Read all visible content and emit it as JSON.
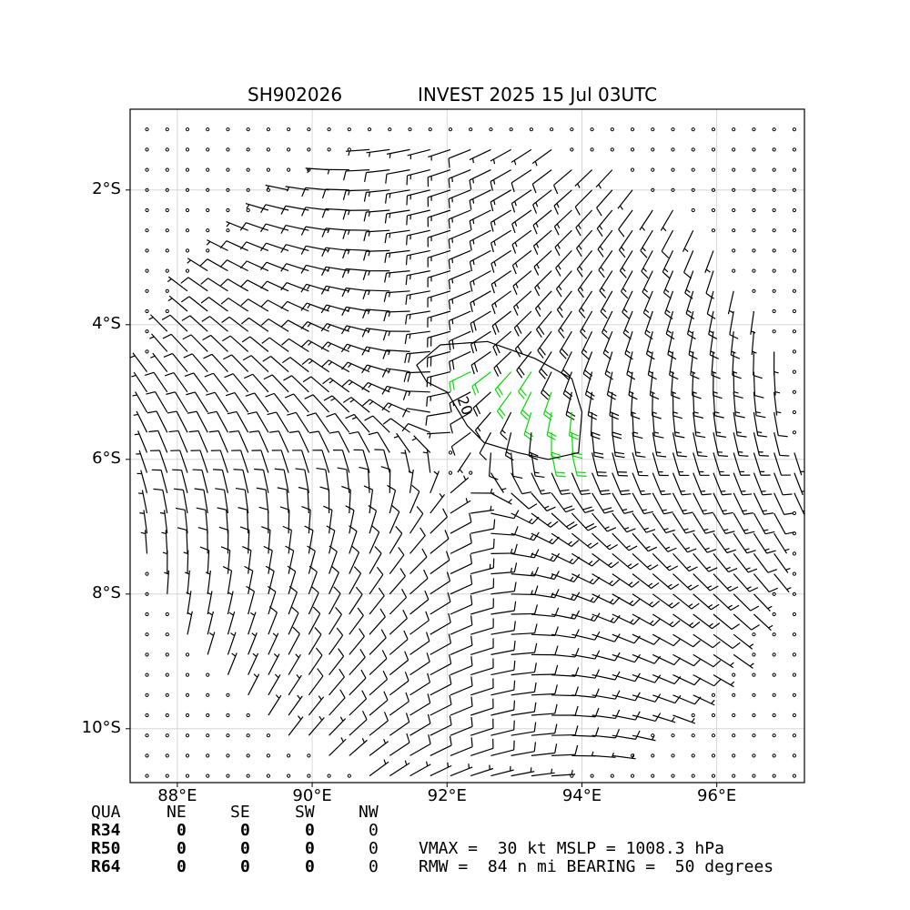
{
  "title": {
    "left": "SH902026",
    "right": "INVEST 2025 15 Jul 03UTC"
  },
  "chart_data": {
    "type": "wind-barb map",
    "lon_range": [
      87.3,
      97.3
    ],
    "lat_range": [
      -10.8,
      -0.8
    ],
    "x_ticks": [
      {
        "value": 88,
        "label": "88°E"
      },
      {
        "value": 90,
        "label": "90°E"
      },
      {
        "value": 92,
        "label": "92°E"
      },
      {
        "value": 94,
        "label": "94°E"
      },
      {
        "value": 96,
        "label": "96°E"
      }
    ],
    "y_ticks": [
      {
        "value": -2,
        "label": "2°S"
      },
      {
        "value": -4,
        "label": "4°S"
      },
      {
        "value": -6,
        "label": "6°S"
      },
      {
        "value": -8,
        "label": "8°S"
      },
      {
        "value": -10,
        "label": "10°S"
      }
    ],
    "grid": true,
    "center": {
      "lon": 92.2,
      "lat": -6.1
    },
    "vmax_kt": 30,
    "rmw_nmi": 84,
    "max_wind_bearing_deg": 50,
    "contour": {
      "value": 20,
      "label": "20",
      "color": "#000000"
    },
    "barb_color_low": "#000000",
    "barb_color_high": "#00dd00",
    "high_wind_threshold_kt": 20
  },
  "table": {
    "header": [
      "QUA",
      "NE",
      "SE",
      "SW",
      "NW"
    ],
    "rows": [
      {
        "label": "R34",
        "values": [
          "0",
          "0",
          "0",
          "0"
        ]
      },
      {
        "label": "R50",
        "values": [
          "0",
          "0",
          "0",
          "0"
        ]
      },
      {
        "label": "R64",
        "values": [
          "0",
          "0",
          "0",
          "0"
        ]
      }
    ]
  },
  "info": {
    "line1": "VMAX =  30 kt MSLP = 1008.3 hPa",
    "line2": "RMW =  84 n mi BEARING =  50 degrees"
  }
}
